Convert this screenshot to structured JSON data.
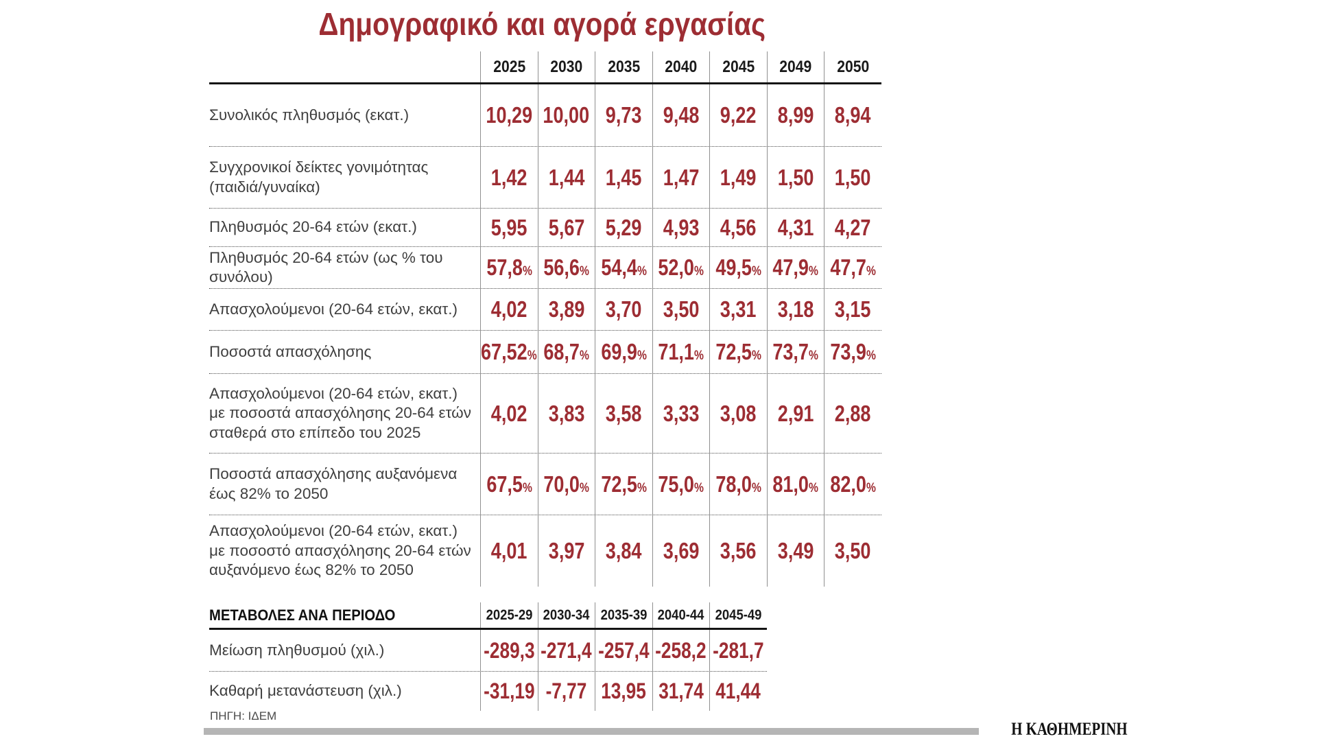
{
  "title": "Δημογραφικό και αγορά εργασίας",
  "chart_data": [
    {
      "type": "table",
      "title": "Δημογραφικό και αγορά εργασίας",
      "categories": [
        "2025",
        "2030",
        "2035",
        "2040",
        "2045",
        "2049",
        "2050"
      ],
      "series": [
        {
          "name": "Συνολικός πληθυσμός (εκατ.)",
          "label_lines": [
            "Συνολικός πληθυσμός (εκατ.)"
          ],
          "values": [
            "10,29",
            "10,00",
            "9,73",
            "9,48",
            "9,22",
            "8,99",
            "8,94"
          ]
        },
        {
          "name": "Συγχρονικοί δείκτες γονιμότητας (παιδιά/γυναίκα)",
          "label_lines": [
            "Συγχρονικοί δείκτες γονιμότητας",
            "(παιδιά/γυναίκα)"
          ],
          "values": [
            "1,42",
            "1,44",
            "1,45",
            "1,47",
            "1,49",
            "1,50",
            "1,50"
          ]
        },
        {
          "name": "Πληθυσμός 20-64 ετών (εκατ.)",
          "label_lines": [
            "Πληθυσμός 20-64 ετών (εκατ.)"
          ],
          "values": [
            "5,95",
            "5,67",
            "5,29",
            "4,93",
            "4,56",
            "4,31",
            "4,27"
          ]
        },
        {
          "name": "Πληθυσμός 20-64 ετών (ως % του συνόλου)",
          "label_lines": [
            "Πληθυσμός 20-64 ετών (ως % του συνόλου)"
          ],
          "values": [
            "57,8%",
            "56,6%",
            "54,4%",
            "52,0%",
            "49,5%",
            "47,9%",
            "47,7%"
          ]
        },
        {
          "name": "Απασχολούμενοι (20-64 ετών, εκατ.)",
          "label_lines": [
            "Απασχολούμενοι (20-64 ετών, εκατ.)"
          ],
          "values": [
            "4,02",
            "3,89",
            "3,70",
            "3,50",
            "3,31",
            "3,18",
            "3,15"
          ]
        },
        {
          "name": "Ποσοστά απασχόλησης",
          "label_lines": [
            "Ποσοστά απασχόλησης"
          ],
          "values": [
            "67,52%",
            "68,7%",
            "69,9%",
            "71,1%",
            "72,5%",
            "73,7%",
            "73,9%"
          ]
        },
        {
          "name": "Απασχολούμενοι (20-64 ετών, εκατ.) με ποσοστά απασχόλησης 20-64 ετών σταθερά στο επίπεδο του 2025",
          "label_lines": [
            "Απασχολούμενοι (20-64 ετών, εκατ.)",
            "με ποσοστά απασχόλησης 20-64 ετών",
            "σταθερά στο επίπεδο του 2025"
          ],
          "values": [
            "4,02",
            "3,83",
            "3,58",
            "3,33",
            "3,08",
            "2,91",
            "2,88"
          ]
        },
        {
          "name": "Ποσοστά απασχόλησης αυξανόμενα έως 82% το 2050",
          "label_lines": [
            "Ποσοστά απασχόλησης αυξανόμενα",
            "έως 82% το 2050"
          ],
          "values": [
            "67,5%",
            "70,0%",
            "72,5%",
            "75,0%",
            "78,0%",
            "81,0%",
            "82,0%"
          ]
        },
        {
          "name": "Απασχολούμενοι (20-64 ετών, εκατ.) με ποσοστό απασχόλησης 20-64 ετών αυξανόμενο έως 82% το 2050",
          "label_lines": [
            "Απασχολούμενοι (20-64 ετών, εκατ.)",
            "με ποσοστό απασχόλησης 20-64 ετών",
            "αυξανόμενο έως 82% το 2050"
          ],
          "values": [
            "4,01",
            "3,97",
            "3,84",
            "3,69",
            "3,56",
            "3,49",
            "3,50"
          ]
        }
      ]
    },
    {
      "type": "table",
      "title": "ΜΕΤΑΒΟΛΕΣ ΑΝΑ ΠΕΡΙΟΔΟ",
      "categories": [
        "2025-29",
        "2030-34",
        "2035-39",
        "2040-44",
        "2045-49"
      ],
      "series": [
        {
          "name": "Μείωση πληθυσμού (χιλ.)",
          "label_lines": [
            "Μείωση πληθυσμού (χιλ.)"
          ],
          "values": [
            "-289,3",
            "-271,4",
            "-257,4",
            "-258,2",
            "-281,7"
          ]
        },
        {
          "name": "Καθαρή μετανάστευση (χιλ.)",
          "label_lines": [
            "Καθαρή μετανάστευση (χιλ.)"
          ],
          "values": [
            "-31,19",
            "-7,77",
            "13,95",
            "31,74",
            "41,44"
          ]
        }
      ]
    }
  ],
  "footer": {
    "source": "ΠΗΓΗ: ΙΔΕΜ",
    "brand": "Η ΚΑΘΗΜΕΡΙΝΗ"
  },
  "colors": {
    "accent_red": "#9d2d33",
    "header_text": "#1a1a1a",
    "label_text": "#3f3f3f",
    "column_separator": "#8f8f8f",
    "thick_rule": "#141414",
    "dotted_rule": "#4c4c4c",
    "footer_bar": "#b5b5b5"
  }
}
